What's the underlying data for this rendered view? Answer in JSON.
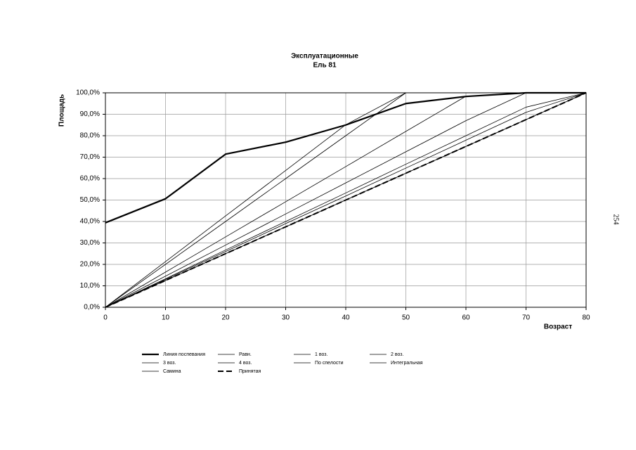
{
  "page_number": "254",
  "chart_data": {
    "type": "line",
    "title": "Эксплуатационные",
    "subtitle": "Ель 81",
    "x_label": "Возраст",
    "y_label": "Площадь",
    "x": [
      0,
      10,
      20,
      30,
      40,
      50,
      60,
      70,
      80
    ],
    "xlim": [
      0,
      80
    ],
    "xticks": [
      0,
      10,
      20,
      30,
      40,
      50,
      60,
      70,
      80
    ],
    "ylim": [
      0,
      100
    ],
    "yticks": [
      {
        "value": 0,
        "label": "0,0%"
      },
      {
        "value": 10,
        "label": "10,0%"
      },
      {
        "value": 20,
        "label": "20,0%"
      },
      {
        "value": 30,
        "label": "30,0%"
      },
      {
        "value": 40,
        "label": "40,0%"
      },
      {
        "value": 50,
        "label": "50,0%"
      },
      {
        "value": 60,
        "label": "60,0%"
      },
      {
        "value": 70,
        "label": "70,0%"
      },
      {
        "value": 80,
        "label": "80,0%"
      },
      {
        "value": 90,
        "label": "90,0%"
      },
      {
        "value": 100,
        "label": "100,0%"
      }
    ],
    "grid": true,
    "series": [
      {
        "name": "Линия поспевания",
        "color": "#000000",
        "line_width": 2.2,
        "dashed": false,
        "values": [
          39.4,
          50.6,
          71.4,
          77,
          85,
          95,
          98.3,
          100,
          100
        ]
      },
      {
        "name": "Равн.",
        "color": "#000000",
        "line_width": 0.8,
        "dashed": false,
        "values": [
          0,
          21.3,
          42.6,
          63.8,
          85.1,
          100,
          100,
          100,
          100
        ]
      },
      {
        "name": "1 воз.",
        "color": "#000000",
        "line_width": 0.8,
        "dashed": false,
        "values": [
          0,
          20,
          40,
          60,
          80,
          100,
          100,
          100,
          100
        ]
      },
      {
        "name": "2 воз.",
        "color": "#000000",
        "line_width": 0.8,
        "dashed": false,
        "values": [
          0,
          16.4,
          32.8,
          49.2,
          65.6,
          82,
          98.4,
          100,
          100
        ]
      },
      {
        "name": "3 воз.",
        "color": "#000000",
        "line_width": 0.8,
        "dashed": false,
        "values": [
          0,
          14.5,
          29,
          43.5,
          58,
          72.5,
          87,
          100,
          100
        ]
      },
      {
        "name": "4 воз.",
        "color": "#000000",
        "line_width": 0.8,
        "dashed": false,
        "values": [
          0,
          13.3,
          26.7,
          40,
          53.3,
          66.7,
          80,
          93.3,
          100
        ]
      },
      {
        "name": "По спелости",
        "color": "#000000",
        "line_width": 0.8,
        "dashed": false,
        "values": [
          0,
          13,
          26,
          39,
          51.9,
          64.9,
          77.9,
          90.9,
          100
        ]
      },
      {
        "name": "Интегральная",
        "color": "#000000",
        "line_width": 0.8,
        "dashed": false,
        "values": [
          0,
          12.5,
          25,
          37.5,
          50,
          62.5,
          75,
          87.5,
          100
        ]
      },
      {
        "name": "Самина",
        "color": "#000000",
        "line_width": 0.8,
        "dashed": false,
        "values": [
          0,
          12.5,
          25,
          37.5,
          50,
          62.5,
          75,
          87.5,
          100
        ]
      },
      {
        "name": "Принятая",
        "color": "#000000",
        "line_width": 2,
        "dashed": true,
        "values": [
          0,
          12.5,
          25,
          37.5,
          50,
          62.5,
          75,
          87.5,
          100
        ]
      }
    ]
  }
}
